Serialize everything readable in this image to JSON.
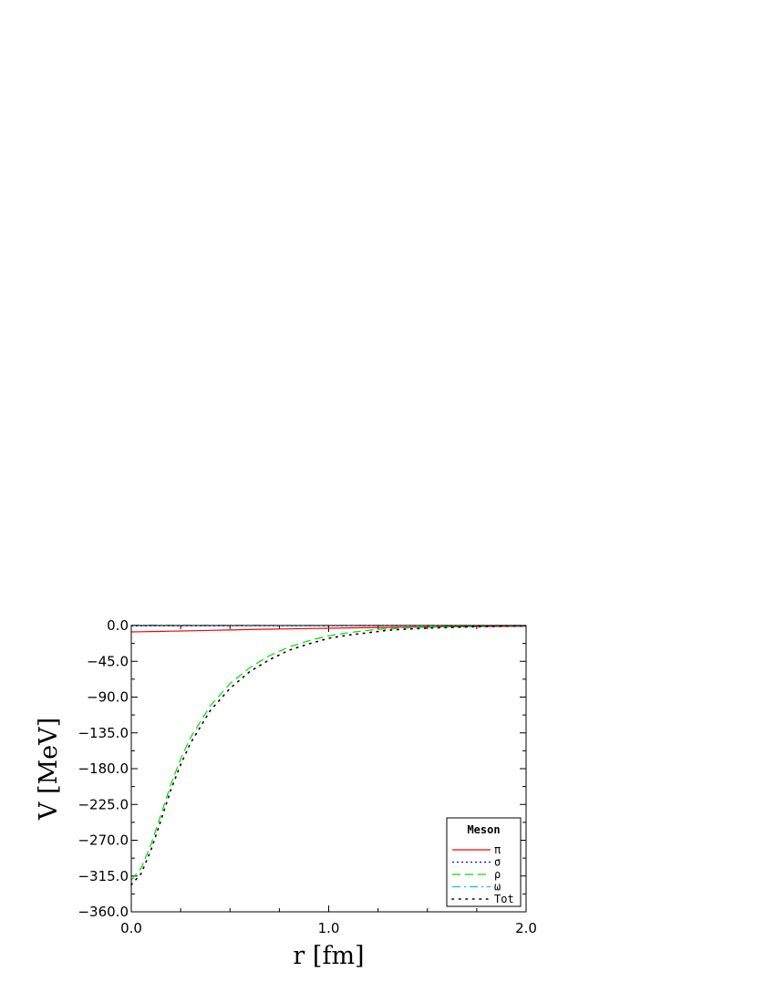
{
  "chart_data": {
    "type": "line",
    "xlabel": "r [fm]",
    "ylabel": "V [MeV]",
    "xlim": [
      0.0,
      2.0
    ],
    "ylim": [
      -360.0,
      0.0
    ],
    "x_ticks": [
      "0.0",
      "1.0",
      "2.0"
    ],
    "y_ticks": [
      "0.0",
      "−45.0",
      "−90.0",
      "−135.0",
      "−180.0",
      "−225.0",
      "−270.0",
      "−315.0",
      "−360.0"
    ],
    "grid": false,
    "legend": {
      "title": "Meson",
      "placement": "bottom-right"
    },
    "x": [
      0.0,
      0.05,
      0.1,
      0.15,
      0.2,
      0.25,
      0.3,
      0.4,
      0.5,
      0.6,
      0.7,
      0.8,
      0.9,
      1.0,
      1.1,
      1.2,
      1.3,
      1.4,
      1.5,
      1.6,
      1.7,
      1.8,
      1.9,
      2.0
    ],
    "series": [
      {
        "name": "π",
        "color": "#ff0000",
        "dash": "solid",
        "values": [
          -8,
          -7.8,
          -7.6,
          -7.4,
          -7.1,
          -6.9,
          -6.6,
          -6.1,
          -5.6,
          -5.1,
          -4.6,
          -4.2,
          -3.8,
          -3.4,
          -3.0,
          -2.7,
          -2.4,
          -2.1,
          -1.8,
          -1.6,
          -1.4,
          -1.2,
          -1.0,
          -0.9
        ]
      },
      {
        "name": "σ",
        "color": "#0000ff",
        "dash": "dotted",
        "values": [
          -0.5,
          -0.5,
          -0.4,
          -0.4,
          -0.4,
          -0.3,
          -0.3,
          -0.3,
          -0.2,
          -0.2,
          -0.2,
          -0.1,
          -0.1,
          -0.1,
          -0.1,
          0,
          0,
          0,
          0,
          0,
          0,
          0,
          0,
          0
        ]
      },
      {
        "name": "ρ",
        "color": "#00dd00",
        "dash": "dashed",
        "values": [
          -320,
          -305,
          -275,
          -238,
          -200,
          -168,
          -141,
          -101,
          -73,
          -53,
          -38,
          -27,
          -19,
          -13,
          -9,
          -6,
          -4,
          -3,
          -2,
          -1.5,
          -1,
          -0.6,
          -0.3,
          -0.2
        ]
      },
      {
        "name": "ω",
        "color": "#00cccc",
        "dash": "dashdot",
        "values": [
          0.3,
          0.3,
          0.3,
          0.2,
          0.2,
          0.2,
          0.2,
          0.1,
          0.1,
          0.1,
          0.1,
          0,
          0,
          0,
          0,
          0,
          0,
          0,
          0,
          0,
          0,
          0,
          0,
          0
        ]
      },
      {
        "name": "Tot",
        "color": "#000000",
        "dash": "sparse-dotted",
        "values": [
          -326,
          -312,
          -282,
          -245,
          -207,
          -175,
          -148,
          -107,
          -79,
          -58,
          -43,
          -31,
          -23,
          -16,
          -12,
          -9,
          -6,
          -4.5,
          -3.3,
          -2.5,
          -1.8,
          -1.3,
          -0.8,
          -0.5
        ]
      }
    ]
  }
}
